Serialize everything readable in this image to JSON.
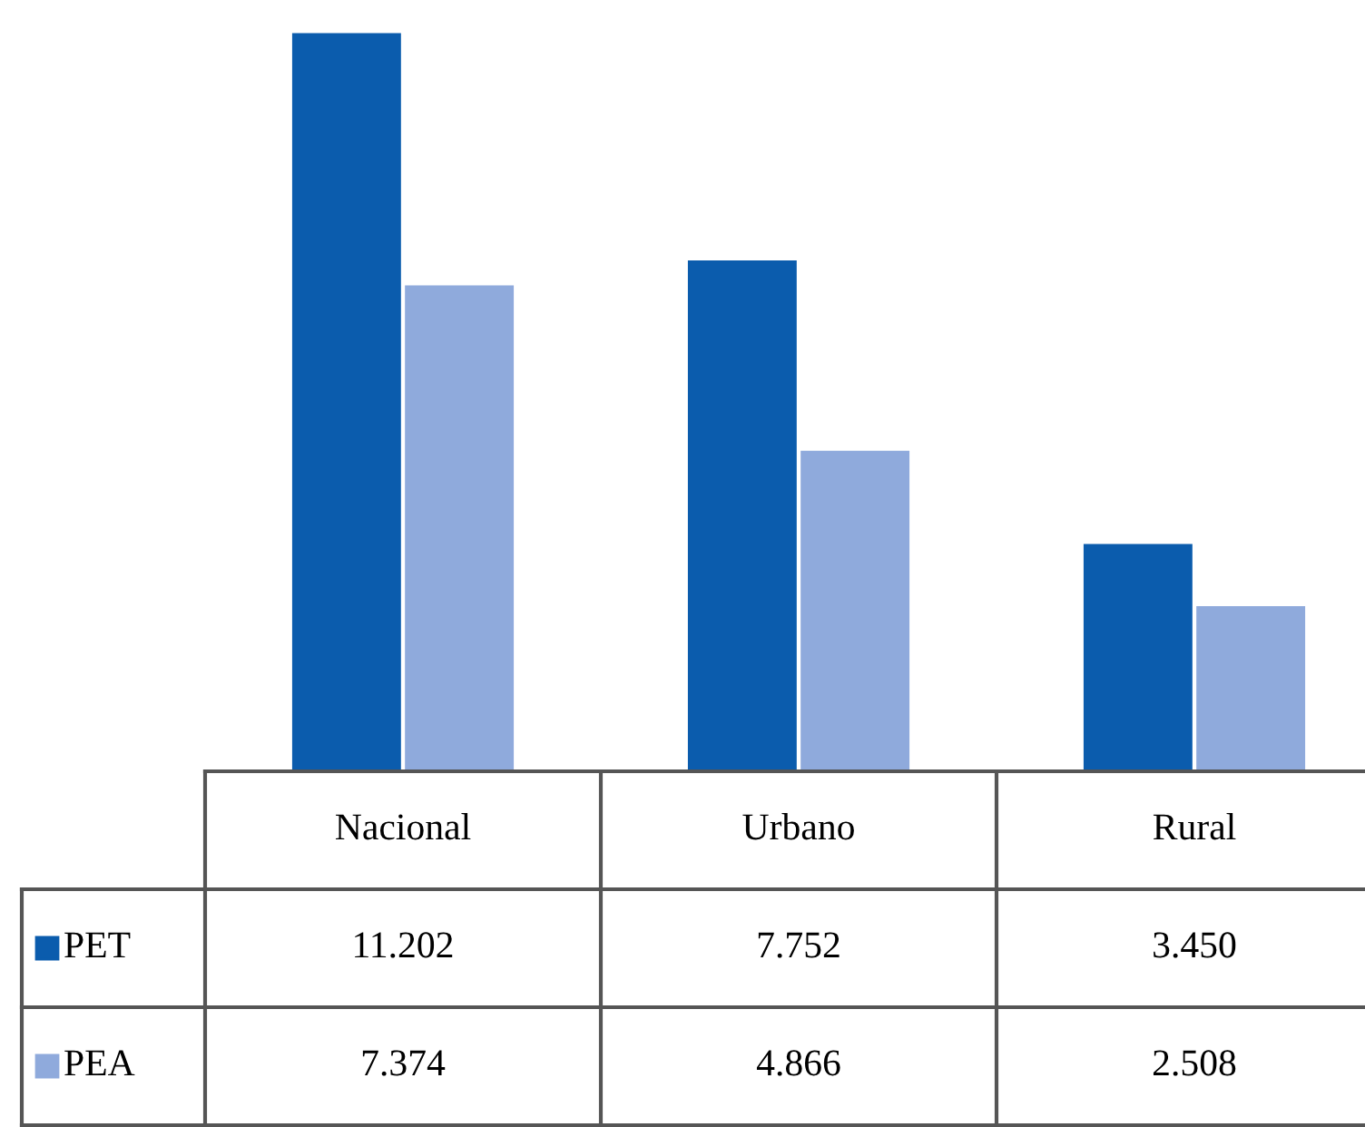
{
  "chart_data": {
    "type": "bar",
    "categories": [
      "Nacional",
      "Urbano",
      "Rural"
    ],
    "legend": "bottom left",
    "series": [
      {
        "name": "PET",
        "color": "#0b5cad",
        "values": [
          11.202,
          7.752,
          3.45
        ],
        "value_labels": [
          "11.202",
          "7.752",
          "3.450"
        ]
      },
      {
        "name": "PEA",
        "color": "#8faadc",
        "values": [
          7.374,
          4.866,
          2.508
        ],
        "value_labels": [
          "7.374",
          "4.866",
          "2.508"
        ]
      }
    ]
  }
}
